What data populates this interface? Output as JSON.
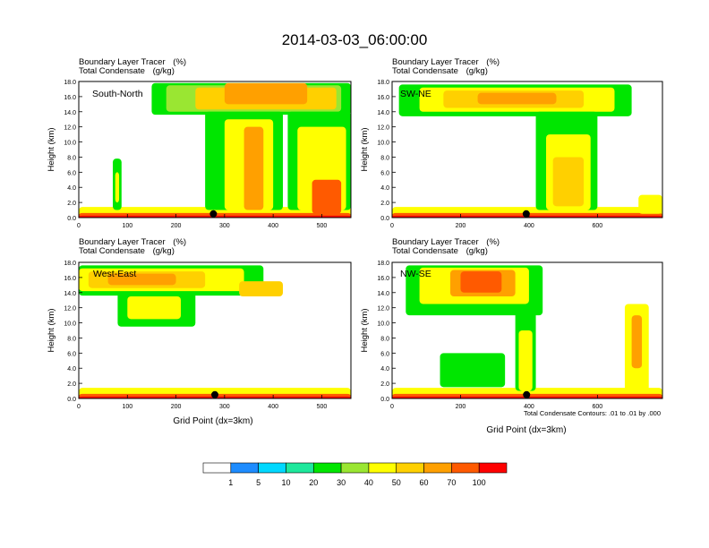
{
  "chart_data": {
    "type": "heatmap",
    "title": "2014-03-03_06:00:00",
    "field_label": "Boundary Layer Tracer",
    "field_units": "(%)",
    "contour_label": "Total Condensate",
    "contour_units": "(g/kg)",
    "ylabel": "Height (km)",
    "xlabel": "Grid Point (dx=3km)",
    "contour_note": "Total Condensate Contours: .01 to .01 by .000",
    "contour_value_label": ".01",
    "panels": [
      {
        "name": "South-North",
        "xlim": [
          0,
          560
        ],
        "xticks": [
          "0",
          "100",
          "200",
          "300",
          "400",
          "500"
        ],
        "xtick_values": [
          0,
          100,
          200,
          300,
          400,
          500
        ],
        "marker_x": 277,
        "xlabel_shown": false,
        "cells": [
          {
            "x0": 0,
            "x1": 560,
            "y0": 0,
            "y1": 1.4,
            "v": 40
          },
          {
            "x0": 0,
            "x1": 560,
            "y0": 0,
            "y1": 0.6,
            "v": 70
          },
          {
            "x0": 0,
            "x1": 560,
            "y0": 0,
            "y1": 0.25,
            "v": 100
          },
          {
            "x0": 70,
            "x1": 88,
            "y0": 1.0,
            "y1": 7.8,
            "v": 20
          },
          {
            "x0": 75,
            "x1": 83,
            "y0": 2.0,
            "y1": 6.0,
            "v": 40
          },
          {
            "x0": 150,
            "x1": 560,
            "y0": 13.6,
            "y1": 17.8,
            "v": 20
          },
          {
            "x0": 180,
            "x1": 540,
            "y0": 14.0,
            "y1": 17.5,
            "v": 30
          },
          {
            "x0": 240,
            "x1": 530,
            "y0": 14.3,
            "y1": 17.2,
            "v": 50
          },
          {
            "x0": 300,
            "x1": 470,
            "y0": 15.0,
            "y1": 17.8,
            "v": 60
          },
          {
            "x0": 260,
            "x1": 420,
            "y0": 1.0,
            "y1": 14.0,
            "v": 20
          },
          {
            "x0": 300,
            "x1": 400,
            "y0": 1.0,
            "y1": 13.0,
            "v": 40
          },
          {
            "x0": 340,
            "x1": 380,
            "y0": 1.0,
            "y1": 12.0,
            "v": 60
          },
          {
            "x0": 430,
            "x1": 560,
            "y0": 1.0,
            "y1": 14.0,
            "v": 20
          },
          {
            "x0": 450,
            "x1": 550,
            "y0": 1.0,
            "y1": 12.0,
            "v": 40
          },
          {
            "x0": 480,
            "x1": 540,
            "y0": 0.5,
            "y1": 5.0,
            "v": 70
          }
        ]
      },
      {
        "name": "SW-NE",
        "xlim": [
          0,
          790
        ],
        "xticks": [
          "0",
          "200",
          "400",
          "600"
        ],
        "xtick_values": [
          0,
          200,
          400,
          600
        ],
        "marker_x": 392,
        "xlabel_shown": false,
        "cells": [
          {
            "x0": 0,
            "x1": 790,
            "y0": 0,
            "y1": 1.4,
            "v": 40
          },
          {
            "x0": 0,
            "x1": 790,
            "y0": 0,
            "y1": 0.6,
            "v": 70
          },
          {
            "x0": 0,
            "x1": 790,
            "y0": 0,
            "y1": 0.25,
            "v": 100
          },
          {
            "x0": 20,
            "x1": 700,
            "y0": 13.4,
            "y1": 17.6,
            "v": 20
          },
          {
            "x0": 80,
            "x1": 650,
            "y0": 14.0,
            "y1": 17.2,
            "v": 40
          },
          {
            "x0": 150,
            "x1": 560,
            "y0": 14.5,
            "y1": 16.8,
            "v": 50
          },
          {
            "x0": 250,
            "x1": 480,
            "y0": 15.0,
            "y1": 16.5,
            "v": 60
          },
          {
            "x0": 420,
            "x1": 600,
            "y0": 1.0,
            "y1": 14.0,
            "v": 20
          },
          {
            "x0": 450,
            "x1": 580,
            "y0": 1.0,
            "y1": 11.0,
            "v": 40
          },
          {
            "x0": 470,
            "x1": 560,
            "y0": 1.5,
            "y1": 8.0,
            "v": 50
          },
          {
            "x0": 720,
            "x1": 790,
            "y0": 0.5,
            "y1": 3.0,
            "v": 40
          }
        ]
      },
      {
        "name": "West-East",
        "xlim": [
          0,
          560
        ],
        "xticks": [
          "0",
          "100",
          "200",
          "300",
          "400",
          "500"
        ],
        "xtick_values": [
          0,
          100,
          200,
          300,
          400,
          500
        ],
        "marker_x": 280,
        "xlabel_shown": true,
        "cells": [
          {
            "x0": 0,
            "x1": 560,
            "y0": 0,
            "y1": 1.4,
            "v": 40
          },
          {
            "x0": 0,
            "x1": 560,
            "y0": 0,
            "y1": 0.6,
            "v": 70
          },
          {
            "x0": 0,
            "x1": 560,
            "y0": 0,
            "y1": 0.25,
            "v": 100
          },
          {
            "x0": 0,
            "x1": 380,
            "y0": 13.6,
            "y1": 17.6,
            "v": 20
          },
          {
            "x0": 0,
            "x1": 340,
            "y0": 14.2,
            "y1": 17.2,
            "v": 40
          },
          {
            "x0": 20,
            "x1": 260,
            "y0": 14.6,
            "y1": 16.8,
            "v": 50
          },
          {
            "x0": 60,
            "x1": 200,
            "y0": 15.0,
            "y1": 16.5,
            "v": 60
          },
          {
            "x0": 80,
            "x1": 240,
            "y0": 9.5,
            "y1": 14.0,
            "v": 20
          },
          {
            "x0": 100,
            "x1": 210,
            "y0": 10.5,
            "y1": 13.5,
            "v": 40
          },
          {
            "x0": 330,
            "x1": 420,
            "y0": 13.5,
            "y1": 15.5,
            "v": 50
          }
        ]
      },
      {
        "name": "NW-SE",
        "xlim": [
          0,
          790
        ],
        "xticks": [
          "0",
          "200",
          "400",
          "600"
        ],
        "xtick_values": [
          0,
          200,
          400,
          600
        ],
        "marker_x": 393,
        "xlabel_shown": true,
        "cells": [
          {
            "x0": 0,
            "x1": 790,
            "y0": 0,
            "y1": 1.4,
            "v": 40
          },
          {
            "x0": 0,
            "x1": 790,
            "y0": 0,
            "y1": 0.6,
            "v": 70
          },
          {
            "x0": 0,
            "x1": 790,
            "y0": 0,
            "y1": 0.25,
            "v": 100
          },
          {
            "x0": 40,
            "x1": 440,
            "y0": 11.0,
            "y1": 17.6,
            "v": 20
          },
          {
            "x0": 80,
            "x1": 400,
            "y0": 12.5,
            "y1": 17.3,
            "v": 40
          },
          {
            "x0": 170,
            "x1": 360,
            "y0": 13.5,
            "y1": 17.0,
            "v": 60
          },
          {
            "x0": 200,
            "x1": 320,
            "y0": 14.0,
            "y1": 16.8,
            "v": 70
          },
          {
            "x0": 360,
            "x1": 420,
            "y0": 1.0,
            "y1": 12.5,
            "v": 20
          },
          {
            "x0": 370,
            "x1": 410,
            "y0": 1.0,
            "y1": 9.0,
            "v": 40
          },
          {
            "x0": 140,
            "x1": 330,
            "y0": 1.5,
            "y1": 6.0,
            "v": 20
          },
          {
            "x0": 680,
            "x1": 750,
            "y0": 1.0,
            "y1": 12.5,
            "v": 40
          },
          {
            "x0": 700,
            "x1": 730,
            "y0": 4.0,
            "y1": 11.0,
            "v": 60
          }
        ]
      }
    ],
    "yticks": [
      "0.0",
      "2.0",
      "4.0",
      "6.0",
      "8.0",
      "10.0",
      "12.0",
      "14.0",
      "16.0",
      "18.0"
    ],
    "ytick_values": [
      0,
      2,
      4,
      6,
      8,
      10,
      12,
      14,
      16,
      18
    ],
    "colorbar": {
      "levels": [
        "1",
        "5",
        "10",
        "20",
        "30",
        "40",
        "50",
        "60",
        "70",
        "100"
      ],
      "colors": [
        "#ffffff",
        "#1e8cff",
        "#00d8ff",
        "#1ee89c",
        "#00e600",
        "#9ae632",
        "#ffff00",
        "#ffd000",
        "#ffa000",
        "#ff5a00",
        "#ff0000"
      ]
    }
  }
}
